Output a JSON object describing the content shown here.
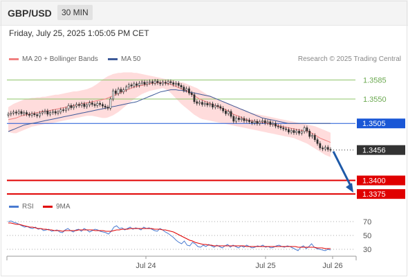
{
  "header": {
    "pair": "GBP/USD",
    "timeframe": "30 MIN",
    "datetime": "Friday, July 25, 2025 1:05:05 PM CET"
  },
  "legend": {
    "ma20_label": "MA 20 + Bollinger Bands",
    "ma50_label": "MA 50",
    "credit": "Research © 2025 Trading Central",
    "rsi_label": "RSI",
    "rsi_ma_label": "9MA"
  },
  "colors": {
    "candle": "#2f2f2f",
    "ma20": "#f08080",
    "ma50": "#3d5a99",
    "band": "#ffd6d6",
    "resistance": "#8fc46a",
    "pivot": "#1a57d6",
    "support": "#e00000",
    "arrow": "#1e5aa8",
    "current": "#333333",
    "rsi": "#4a7bd1",
    "rsi_ma": "#e00000"
  },
  "chart_data": {
    "type": "candlestick",
    "x_ticks": [
      "Jul 24",
      "Jul 25",
      "Jul 26"
    ],
    "ylim": [
      1.3365,
      1.3615
    ],
    "levels": [
      {
        "label": "1.3585",
        "value": 1.3585,
        "kind": "resistance"
      },
      {
        "label": "1.3550",
        "value": 1.355,
        "kind": "resistance"
      },
      {
        "label": "1.3505",
        "value": 1.3505,
        "kind": "pivot"
      },
      {
        "label": "1.3456",
        "value": 1.3456,
        "kind": "current"
      },
      {
        "label": "1.3400",
        "value": 1.34,
        "kind": "support"
      },
      {
        "label": "1.3375",
        "value": 1.3375,
        "kind": "support"
      }
    ],
    "close": [
      1.3522,
      1.3524,
      1.3526,
      1.3524,
      1.3527,
      1.3523,
      1.3525,
      1.3522,
      1.352,
      1.3523,
      1.3521,
      1.3519,
      1.3524,
      1.3526,
      1.3528,
      1.3522,
      1.3525,
      1.3527,
      1.3524,
      1.3526,
      1.353,
      1.3529,
      1.3532,
      1.3538,
      1.3534,
      1.3537,
      1.354,
      1.3538,
      1.3541,
      1.3536,
      1.3539,
      1.3543,
      1.354,
      1.3538,
      1.3542,
      1.354,
      1.3537,
      1.3535,
      1.3533,
      1.355,
      1.3565,
      1.356,
      1.3568,
      1.3563,
      1.3567,
      1.3572,
      1.3576,
      1.3574,
      1.3578,
      1.3575,
      1.3579,
      1.3581,
      1.3577,
      1.358,
      1.3582,
      1.3579,
      1.3583,
      1.358,
      1.3578,
      1.3581,
      1.3579,
      1.3582,
      1.358,
      1.3577,
      1.3579,
      1.3575,
      1.3572,
      1.3566,
      1.3569,
      1.3561,
      1.3558,
      1.3545,
      1.3542,
      1.3544,
      1.354,
      1.3542,
      1.3539,
      1.3541,
      1.3535,
      1.3538,
      1.3536,
      1.3533,
      1.3528,
      1.3523,
      1.3527,
      1.3518,
      1.3509,
      1.3515,
      1.3512,
      1.3514,
      1.351,
      1.3511,
      1.3508,
      1.3506,
      1.3509,
      1.3505,
      1.3508,
      1.351,
      1.3506,
      1.3508,
      1.3503,
      1.3505,
      1.35,
      1.3499,
      1.3497,
      1.3495,
      1.3494,
      1.3489,
      1.3492,
      1.3488,
      1.3491,
      1.3487,
      1.349,
      1.3497,
      1.3491,
      1.3481,
      1.3483,
      1.3475,
      1.3468,
      1.346,
      1.3458,
      1.3461,
      1.3457,
      1.3456
    ],
    "ma20": [
      1.3512,
      1.3513,
      1.3514,
      1.3515,
      1.3517,
      1.3519,
      1.352,
      1.3521,
      1.3522,
      1.3523,
      1.3524,
      1.3525,
      1.3526,
      1.3527,
      1.3528,
      1.3528,
      1.3529,
      1.353,
      1.3531,
      1.3532,
      1.3533,
      1.3534,
      1.3535,
      1.3536,
      1.3537,
      1.3538,
      1.3539,
      1.354,
      1.3541,
      1.3542,
      1.3543,
      1.3544,
      1.3545,
      1.3546,
      1.3547,
      1.3548,
      1.3549,
      1.355,
      1.3552,
      1.3554,
      1.3556,
      1.3558,
      1.356,
      1.3562,
      1.3564,
      1.3566,
      1.3568,
      1.357,
      1.3572,
      1.3573,
      1.3574,
      1.3575,
      1.3576,
      1.3577,
      1.3578,
      1.3579,
      1.3579,
      1.358,
      1.358,
      1.358,
      1.3579,
      1.3578,
      1.3577,
      1.3575,
      1.3573,
      1.3571,
      1.3569,
      1.3567,
      1.3565,
      1.3562,
      1.3559,
      1.3556,
      1.3553,
      1.355,
      1.3548,
      1.3546,
      1.3544,
      1.3542,
      1.354,
      1.3538,
      1.3536,
      1.3534,
      1.3532,
      1.353,
      1.3528,
      1.3525,
      1.3522,
      1.352,
      1.3518,
      1.3516,
      1.3514,
      1.3512,
      1.3511,
      1.351,
      1.3509,
      1.3508,
      1.3507,
      1.3507,
      1.3506,
      1.3505,
      1.3504,
      1.3503,
      1.3502,
      1.3501,
      1.35,
      1.3499,
      1.3498,
      1.3497,
      1.3496,
      1.3495,
      1.3494,
      1.3493,
      1.3492,
      1.3492,
      1.3491,
      1.3489,
      1.3487,
      1.3484,
      1.3481,
      1.3478,
      1.3476,
      1.3474,
      1.3472,
      1.347
    ],
    "band_upper": [
      1.3535,
      1.3538,
      1.3541,
      1.3543,
      1.3545,
      1.3547,
      1.3549,
      1.355,
      1.3551,
      1.3552,
      1.3552,
      1.3553,
      1.3553,
      1.3554,
      1.3554,
      1.3555,
      1.3556,
      1.3557,
      1.3558,
      1.3558,
      1.3559,
      1.356,
      1.3561,
      1.3562,
      1.3563,
      1.3564,
      1.3564,
      1.3565,
      1.3566,
      1.3567,
      1.3568,
      1.357,
      1.3572,
      1.3575,
      1.3578,
      1.3582,
      1.3586,
      1.3589,
      1.3592,
      1.3594,
      1.3596,
      1.3597,
      1.3598,
      1.3598,
      1.3599,
      1.3599,
      1.3599,
      1.3599,
      1.3598,
      1.3598,
      1.3597,
      1.3596,
      1.3595,
      1.3594,
      1.3593,
      1.3592,
      1.3591,
      1.359,
      1.3589,
      1.3588,
      1.3587,
      1.3586,
      1.3585,
      1.3584,
      1.3583,
      1.3582,
      1.3581,
      1.358,
      1.3578,
      1.3576,
      1.3574,
      1.3572,
      1.357,
      1.3567,
      1.3564,
      1.3561,
      1.3558,
      1.3556,
      1.3554,
      1.3552,
      1.355,
      1.3548,
      1.3546,
      1.3544,
      1.3542,
      1.354,
      1.3538,
      1.3536,
      1.3534,
      1.3532,
      1.353,
      1.3528,
      1.3526,
      1.3524,
      1.3523,
      1.3522,
      1.3521,
      1.352,
      1.3519,
      1.3518,
      1.3517,
      1.3516,
      1.3515,
      1.3514,
      1.3513,
      1.3512,
      1.3511,
      1.351,
      1.3509,
      1.3508,
      1.3507,
      1.3506,
      1.3505,
      1.3504,
      1.3503,
      1.3502,
      1.3501,
      1.35,
      1.3498,
      1.3496,
      1.3494,
      1.3492,
      1.349,
      1.3488
    ],
    "band_lower": [
      1.349,
      1.3488,
      1.3487,
      1.3487,
      1.3489,
      1.3491,
      1.3493,
      1.3495,
      1.3497,
      1.3499,
      1.35,
      1.3501,
      1.3502,
      1.3503,
      1.3504,
      1.3504,
      1.3505,
      1.3506,
      1.3507,
      1.3508,
      1.3509,
      1.351,
      1.3511,
      1.3512,
      1.3513,
      1.3514,
      1.3515,
      1.3516,
      1.3517,
      1.3518,
      1.3519,
      1.3519,
      1.3519,
      1.3518,
      1.3517,
      1.3516,
      1.3515,
      1.3515,
      1.3516,
      1.3518,
      1.352,
      1.3523,
      1.3526,
      1.353,
      1.3534,
      1.3538,
      1.3542,
      1.3546,
      1.355,
      1.3553,
      1.3556,
      1.3559,
      1.3561,
      1.3563,
      1.3565,
      1.3566,
      1.3567,
      1.3568,
      1.3569,
      1.357,
      1.3568,
      1.3565,
      1.3561,
      1.3556,
      1.3551,
      1.3546,
      1.3541,
      1.3537,
      1.3533,
      1.3529,
      1.3525,
      1.3521,
      1.3518,
      1.3515,
      1.3513,
      1.3512,
      1.3511,
      1.351,
      1.3509,
      1.3508,
      1.3507,
      1.3506,
      1.3505,
      1.3504,
      1.3503,
      1.3502,
      1.3501,
      1.35,
      1.3499,
      1.3498,
      1.3497,
      1.3496,
      1.3495,
      1.3494,
      1.3493,
      1.3492,
      1.3491,
      1.349,
      1.3489,
      1.3488,
      1.3487,
      1.3486,
      1.3485,
      1.3484,
      1.3483,
      1.3482,
      1.3481,
      1.348,
      1.3479,
      1.3478,
      1.3476,
      1.3474,
      1.3472,
      1.347,
      1.3468,
      1.3465,
      1.3462,
      1.3459,
      1.3456,
      1.3453,
      1.345,
      1.3447,
      1.3445,
      1.3443
    ],
    "ma50": [
      1.349,
      1.3492,
      1.3494,
      1.3496,
      1.3498,
      1.35,
      1.3502,
      1.3503,
      1.3504,
      1.3505,
      1.3506,
      1.3507,
      1.3508,
      1.3509,
      1.351,
      1.3511,
      1.3512,
      1.3513,
      1.3514,
      1.3515,
      1.3516,
      1.3517,
      1.3518,
      1.3519,
      1.352,
      1.3521,
      1.3522,
      1.3523,
      1.3524,
      1.3525,
      1.3526,
      1.3527,
      1.3528,
      1.3529,
      1.353,
      1.3531,
      1.3532,
      1.3533,
      1.3534,
      1.3535,
      1.3536,
      1.3537,
      1.3538,
      1.3539,
      1.354,
      1.3541,
      1.3542,
      1.3543,
      1.3544,
      1.3545,
      1.3547,
      1.3549,
      1.3551,
      1.3553,
      1.3555,
      1.3557,
      1.3559,
      1.3561,
      1.3563,
      1.3564,
      1.3565,
      1.3566,
      1.3567,
      1.3567,
      1.3567,
      1.3566,
      1.3566,
      1.3565,
      1.3564,
      1.3563,
      1.3562,
      1.3561,
      1.356,
      1.3559,
      1.3558,
      1.3557,
      1.3556,
      1.3555,
      1.3553,
      1.3551,
      1.3549,
      1.3547,
      1.3545,
      1.3543,
      1.3541,
      1.3539,
      1.3537,
      1.3535,
      1.3533,
      1.3531,
      1.3529,
      1.3527,
      1.3525,
      1.3523,
      1.3521,
      1.3519,
      1.3517,
      1.3515,
      1.3514,
      1.3513,
      1.3512,
      1.3511,
      1.351,
      1.3509,
      1.3508,
      1.3507,
      1.3506,
      1.3505,
      1.3505,
      1.3505,
      1.3505,
      1.3505,
      1.3505,
      1.3505,
      1.3505,
      1.3505,
      1.3505,
      1.3505,
      1.3505,
      1.3505,
      1.3505,
      1.3505,
      1.3505,
      1.3505
    ],
    "rsi": {
      "ticks": [
        70,
        50,
        30
      ],
      "ylim": [
        22,
        75
      ],
      "rsi": [
        70,
        71,
        69,
        68,
        66,
        64,
        62,
        63,
        61,
        60,
        62,
        59,
        60,
        57,
        58,
        59,
        56,
        57,
        58,
        55,
        54,
        58,
        60,
        57,
        55,
        58,
        59,
        56,
        60,
        58,
        55,
        57,
        59,
        58,
        56,
        55,
        54,
        52,
        56,
        62,
        64,
        60,
        61,
        58,
        60,
        62,
        59,
        61,
        60,
        58,
        62,
        60,
        61,
        59,
        57,
        56,
        60,
        58,
        55,
        53,
        50,
        47,
        43,
        40,
        38,
        42,
        36,
        35,
        40,
        38,
        34,
        33,
        36,
        34,
        37,
        35,
        33,
        36,
        34,
        32,
        35,
        37,
        33,
        36,
        34,
        32,
        35,
        33,
        36,
        34,
        32,
        33,
        35,
        34,
        36,
        33,
        34,
        32,
        33,
        35,
        36,
        34,
        33,
        35,
        34,
        32,
        30,
        28,
        33,
        35,
        31,
        34,
        38,
        33,
        31,
        30,
        29,
        28,
        30,
        29
      ],
      "ma": [
        68,
        68,
        67,
        66,
        66,
        65,
        64,
        63,
        62,
        62,
        61,
        60,
        60,
        59,
        59,
        58,
        58,
        57,
        57,
        57,
        56,
        57,
        57,
        57,
        57,
        57,
        58,
        58,
        58,
        58,
        58,
        58,
        57,
        57,
        57,
        57,
        56,
        56,
        56,
        57,
        58,
        58,
        59,
        59,
        59,
        60,
        60,
        60,
        60,
        60,
        60,
        60,
        60,
        60,
        59,
        59,
        59,
        58,
        58,
        57,
        56,
        55,
        53,
        51,
        49,
        47,
        45,
        43,
        42,
        40,
        39,
        38,
        37,
        37,
        36,
        36,
        35,
        35,
        35,
        35,
        35,
        35,
        35,
        35,
        35,
        35,
        35,
        35,
        34,
        34,
        34,
        34,
        34,
        34,
        34,
        34,
        34,
        34,
        34,
        34,
        34,
        34,
        34,
        34,
        34,
        34,
        34,
        33,
        33,
        33,
        33,
        33,
        33,
        33,
        32,
        32,
        32,
        31,
        31,
        31
      ]
    }
  }
}
